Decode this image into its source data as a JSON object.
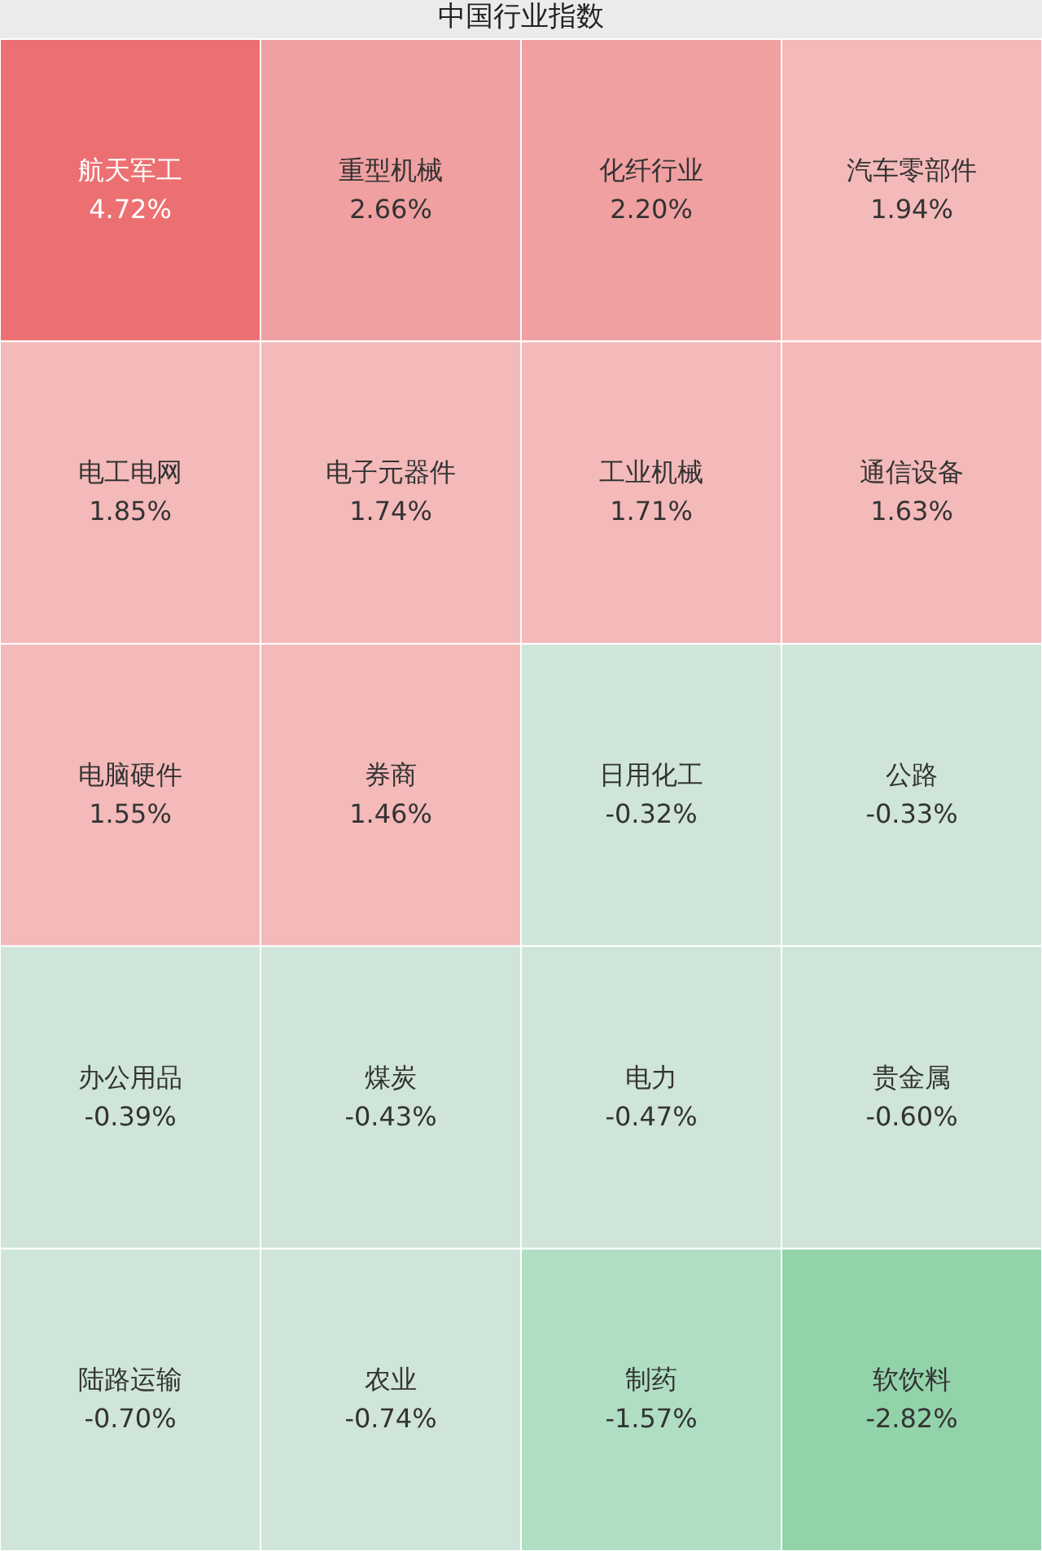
{
  "chart_data": {
    "type": "other",
    "title": "中国行业指数",
    "categories": [
      "航天军工",
      "重型机械",
      "化纤行业",
      "汽车零部件",
      "电工电网",
      "电子元器件",
      "工业机械",
      "通信设备",
      "电脑硬件",
      "券商",
      "日用化工",
      "公路",
      "办公用品",
      "煤炭",
      "电力",
      "贵金属",
      "陆路运输",
      "农业",
      "制药",
      "软饮料"
    ],
    "values": [
      4.72,
      2.66,
      2.2,
      1.94,
      1.85,
      1.74,
      1.71,
      1.63,
      1.55,
      1.46,
      -0.32,
      -0.33,
      -0.39,
      -0.43,
      -0.47,
      -0.6,
      -0.7,
      -0.74,
      -1.57,
      -2.82
    ],
    "value_labels": [
      "4.72%",
      "2.66%",
      "2.20%",
      "1.94%",
      "1.85%",
      "1.74%",
      "1.71%",
      "1.63%",
      "1.55%",
      "1.46%",
      "-0.32%",
      "-0.33%",
      "-0.39%",
      "-0.43%",
      "-0.47%",
      "-0.60%",
      "-0.70%",
      "-0.74%",
      "-1.57%",
      "-2.82%"
    ],
    "colors": [
      "#ec7072",
      "#f0a0a1",
      "#f0a0a1",
      "#f4b9b9",
      "#f4b9b9",
      "#f4b9b9",
      "#f4b9b9",
      "#f4b9b9",
      "#f4b9b9",
      "#f4b9b9",
      "#cfe5d9",
      "#cfe5d9",
      "#cfe5d9",
      "#cfe5d9",
      "#cfe5d9",
      "#cfe5d9",
      "#cfe5d9",
      "#cfe5d9",
      "#b0dec3",
      "#93d3aa"
    ]
  }
}
